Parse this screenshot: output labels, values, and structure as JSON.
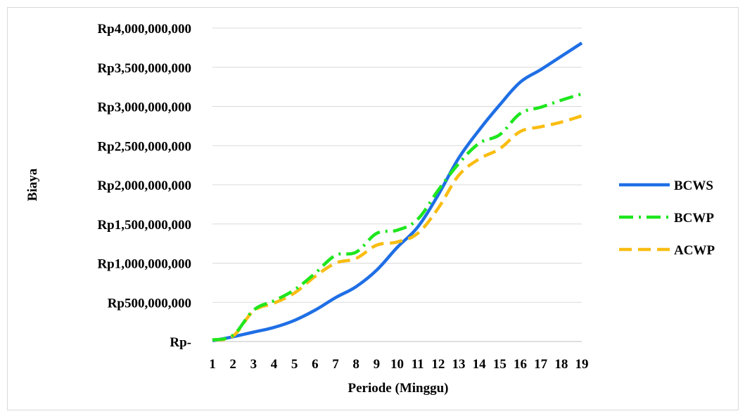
{
  "chart_data": {
    "type": "line",
    "title": "",
    "xlabel": "Periode (Minggu)",
    "ylabel": "Biaya",
    "ylim": [
      0,
      4000000000
    ],
    "yticks": [
      0,
      500000000,
      1000000000,
      1500000000,
      2000000000,
      2500000000,
      3000000000,
      3500000000,
      4000000000
    ],
    "ytick_labels": [
      "Rp-",
      "Rp500,000,000",
      "Rp1,000,000,000",
      "Rp1,500,000,000",
      "Rp2,000,000,000",
      "Rp2,500,000,000",
      "Rp3,000,000,000",
      "Rp3,500,000,000",
      "Rp4,000,000,000"
    ],
    "categories": [
      "1",
      "2",
      "3",
      "4",
      "5",
      "6",
      "7",
      "8",
      "9",
      "10",
      "11",
      "12",
      "13",
      "14",
      "15",
      "16",
      "17",
      "18",
      "19"
    ],
    "grid": "horizontal",
    "legend_position": "right",
    "series": [
      {
        "name": "BCWS",
        "color": "#1f6fe5",
        "dash": "solid",
        "values": [
          10000000,
          60000000,
          120000000,
          180000000,
          270000000,
          400000000,
          560000000,
          700000000,
          910000000,
          1200000000,
          1460000000,
          1870000000,
          2340000000,
          2700000000,
          3020000000,
          3310000000,
          3470000000,
          3640000000,
          3810000000
        ]
      },
      {
        "name": "BCWP",
        "color": "#1ee61e",
        "dash": "dash-dot",
        "values": [
          20000000,
          80000000,
          400000000,
          520000000,
          660000000,
          870000000,
          1100000000,
          1140000000,
          1380000000,
          1420000000,
          1560000000,
          1930000000,
          2270000000,
          2530000000,
          2640000000,
          2910000000,
          2990000000,
          3080000000,
          3160000000
        ]
      },
      {
        "name": "ACWP",
        "color": "#f9bd12",
        "dash": "dash",
        "values": [
          20000000,
          70000000,
          390000000,
          490000000,
          620000000,
          830000000,
          1000000000,
          1060000000,
          1230000000,
          1270000000,
          1380000000,
          1700000000,
          2120000000,
          2330000000,
          2460000000,
          2680000000,
          2740000000,
          2800000000,
          2880000000
        ]
      }
    ]
  }
}
